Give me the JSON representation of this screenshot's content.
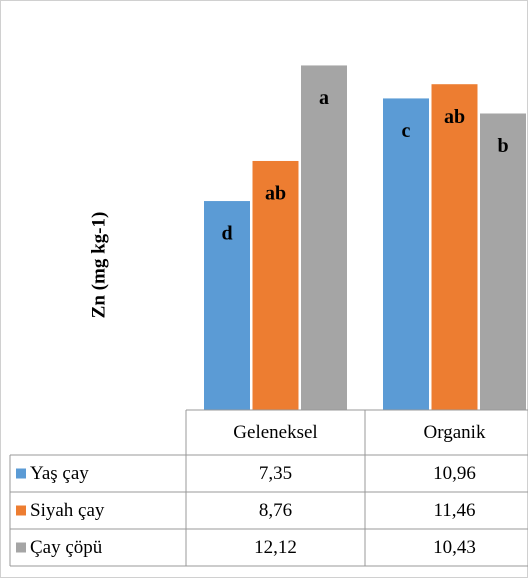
{
  "chart_data": {
    "type": "bar",
    "y_label": "Zn (mg kg-1)",
    "categories": [
      "Geleneksel",
      "Organik"
    ],
    "ylim": [
      0,
      14
    ],
    "series": [
      {
        "name": "Yaş çay",
        "color": "#5b9bd5",
        "values": [
          7.35,
          10.96
        ],
        "value_labels": [
          "7,35",
          "10,96"
        ],
        "letters": [
          "d",
          "c"
        ]
      },
      {
        "name": "Siyah çay",
        "color": "#ed7d31",
        "values": [
          8.76,
          11.46
        ],
        "value_labels": [
          "8,76",
          "11,46"
        ],
        "letters": [
          "ab",
          "ab"
        ]
      },
      {
        "name": "Çay çöpü",
        "color": "#a5a5a5",
        "values": [
          12.12,
          10.43
        ],
        "value_labels": [
          "12,12",
          "10,43"
        ],
        "letters": [
          "a",
          "b"
        ]
      }
    ]
  }
}
